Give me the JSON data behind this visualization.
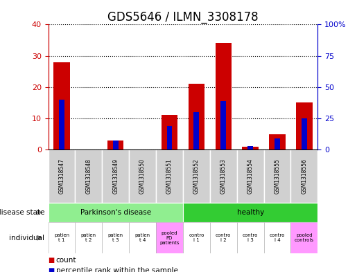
{
  "title": "GDS5646 / ILMN_3308178",
  "samples": [
    "GSM1318547",
    "GSM1318548",
    "GSM1318549",
    "GSM1318550",
    "GSM1318551",
    "GSM1318552",
    "GSM1318553",
    "GSM1318554",
    "GSM1318555",
    "GSM1318556"
  ],
  "counts": [
    28,
    0,
    3,
    0,
    11,
    21,
    34,
    1,
    5,
    15
  ],
  "percentile_ranks": [
    40,
    0,
    7,
    0,
    19,
    30,
    39,
    3,
    9,
    25
  ],
  "ylim_left": [
    0,
    40
  ],
  "ylim_right": [
    0,
    100
  ],
  "yticks_left": [
    0,
    10,
    20,
    30,
    40
  ],
  "yticks_right": [
    0,
    25,
    50,
    75,
    100
  ],
  "disease_state_groups": [
    {
      "label": "Parkinson's disease",
      "start": 0,
      "end": 5,
      "color": "#90EE90"
    },
    {
      "label": "healthy",
      "start": 5,
      "end": 10,
      "color": "#33CC33"
    }
  ],
  "individual_labels": [
    "patien\nt 1",
    "patien\nt 2",
    "patien\nt 3",
    "patien\nt 4",
    "pooled\nPD\npatients",
    "contro\nl 1",
    "contro\nl 2",
    "contro\nl 3",
    "contro\nl 4",
    "pooled\ncontrols"
  ],
  "individual_colors": [
    "#ffffff",
    "#ffffff",
    "#ffffff",
    "#ffffff",
    "#FF99FF",
    "#ffffff",
    "#ffffff",
    "#ffffff",
    "#ffffff",
    "#FF99FF"
  ],
  "bar_color_red": "#CC0000",
  "bar_color_blue": "#0000CC",
  "red_bar_width": 0.6,
  "blue_bar_width": 0.2,
  "left_color": "#CC0000",
  "right_color": "#0000CC",
  "title_fontsize": 12,
  "legend_items": [
    "count",
    "percentile rank within the sample"
  ],
  "legend_colors": [
    "#CC0000",
    "#0000CC"
  ]
}
